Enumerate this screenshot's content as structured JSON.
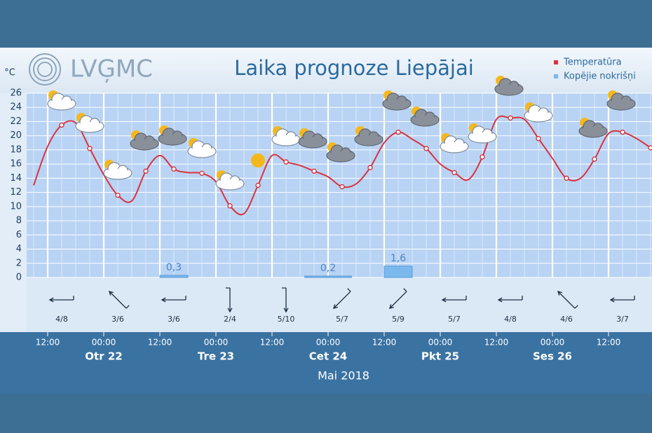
{
  "chart_data": {
    "type": "line",
    "logo": "LVĢMC",
    "title": "Laika prognoze Liepājai",
    "y_label": "°C",
    "x_label": "Mai 2018",
    "xlim": [
      -4.5,
      129.3
    ],
    "ylim": [
      0,
      26
    ],
    "yticks": [
      0,
      2,
      4,
      6,
      8,
      10,
      12,
      14,
      16,
      18,
      20,
      22,
      24,
      26
    ],
    "xticks": [
      {
        "value": 0,
        "label": "12:00"
      },
      {
        "value": 12,
        "label": "00:00"
      },
      {
        "value": 24,
        "label": "12:00"
      },
      {
        "value": 36,
        "label": "00:00"
      },
      {
        "value": 48,
        "label": "12:00"
      },
      {
        "value": 60,
        "label": "00:00"
      },
      {
        "value": 72,
        "label": "12:00"
      },
      {
        "value": 84,
        "label": "00:00"
      },
      {
        "value": 96,
        "label": "12:00"
      },
      {
        "value": 108,
        "label": "00:00"
      },
      {
        "value": 120,
        "label": "12:00"
      }
    ],
    "days": [
      {
        "value": 12,
        "label": "Otr 22"
      },
      {
        "value": 36,
        "label": "Tre 23"
      },
      {
        "value": 60,
        "label": "Cet 24"
      },
      {
        "value": 84,
        "label": "Pkt 25"
      },
      {
        "value": 108,
        "label": "Ses 26",
        "color": "#e8141c"
      }
    ],
    "grid": true,
    "x": [
      -3,
      0,
      3,
      6,
      9,
      12,
      15,
      18,
      21,
      24,
      27,
      30,
      33,
      36,
      39,
      42,
      45,
      48,
      51,
      54,
      57,
      60,
      63,
      66,
      69,
      72,
      75,
      78,
      81,
      84,
      87,
      90,
      93,
      96,
      99,
      102,
      105,
      108,
      111,
      114,
      117,
      120,
      123,
      126,
      129
    ],
    "series": [
      {
        "name": "Temperatūra",
        "color": "#d8343f",
        "values": [
          13,
          18.5,
          21.5,
          21.8,
          18.2,
          14.5,
          11.6,
          10.8,
          15,
          17.2,
          15.3,
          14.8,
          14.7,
          13.5,
          10.1,
          9,
          13,
          17.2,
          16.3,
          15.8,
          15,
          14.2,
          12.8,
          13.2,
          15.5,
          19,
          20.5,
          19.5,
          18.2,
          16,
          14.8,
          13.8,
          17,
          22.3,
          22.5,
          22.3,
          19.6,
          16.8,
          14,
          14,
          16.7,
          20.3,
          20.5,
          19.6,
          18.3
        ]
      }
    ],
    "precipitation": {
      "name": "Kopējie nokrišņi",
      "color": "#7ab8ee",
      "x_start": [
        24,
        55,
        72
      ],
      "x_end": [
        30,
        65,
        78
      ],
      "values": [
        0.3,
        0.2,
        1.6
      ],
      "value_labels": [
        "0,3",
        "0,2",
        "1,6"
      ]
    },
    "wind": {
      "x": [
        3,
        15,
        27,
        39,
        51,
        63,
        75,
        87,
        99,
        111,
        123
      ],
      "labels": [
        "4/8",
        "3/6",
        "3/6",
        "2/4",
        "5/10",
        "5/7",
        "5/9",
        "5/7",
        "4/8",
        "4/6",
        "3/7"
      ],
      "directions": [
        180,
        225,
        180,
        90,
        90,
        135,
        135,
        180,
        180,
        225,
        180
      ]
    }
  }
}
